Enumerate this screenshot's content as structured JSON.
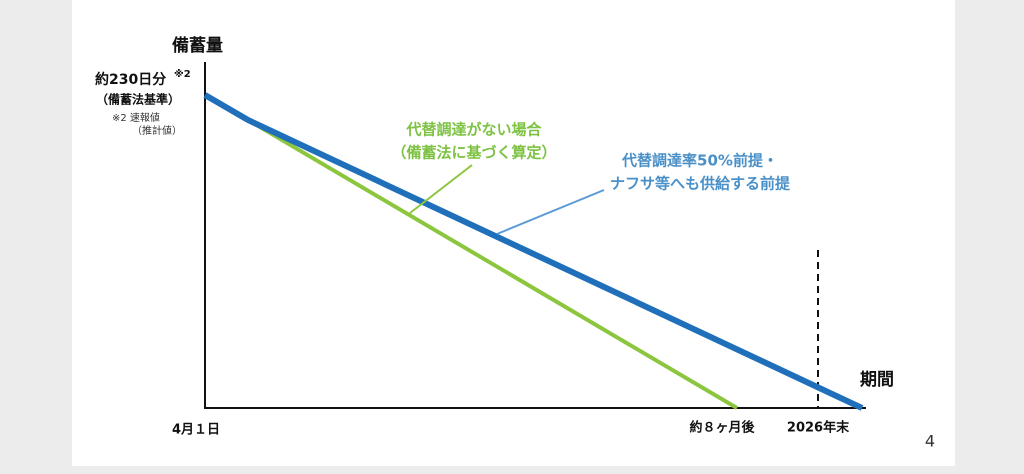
{
  "axes": {
    "y_label": "備蓄量",
    "x_label": "期間"
  },
  "y_start": {
    "label": "約230日分",
    "note_mark": "※2",
    "basis": "（備蓄法基準）",
    "note": [
      "※2  速報値",
      "（推計値）"
    ]
  },
  "x_labels": [
    "4月１日",
    "約８ヶ月後",
    "2026年末"
  ],
  "annotations": [
    {
      "lines": [
        "代替調達がない場合",
        "（備蓄法に基づく算定）"
      ]
    },
    {
      "lines": [
        "代替調達率50%前提・",
        "ナフサ等へも供給する前提"
      ]
    }
  ],
  "page_number": "4"
}
